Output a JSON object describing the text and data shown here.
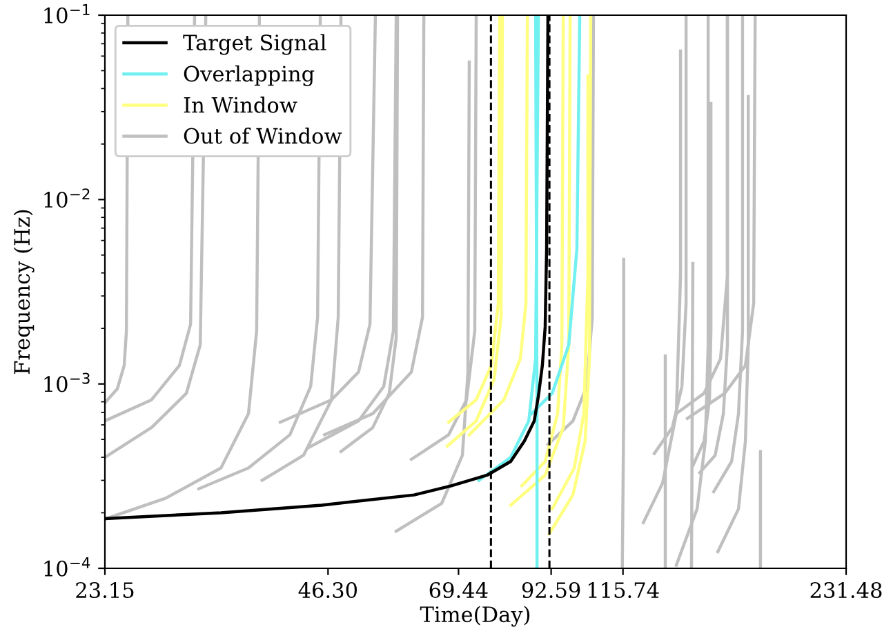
{
  "chart_data": {
    "type": "line",
    "xlabel": "Time(Day)",
    "ylabel": "Frequency (Hz)",
    "log": "xy",
    "legend": "top left",
    "grid": false,
    "marker": "none",
    "line_style": "solid",
    "xlim": [
      23.15,
      231.48
    ],
    "ylim": [
      0.0001,
      0.1
    ],
    "xticks": [
      23.15,
      {
        "value": 46.3,
        "label": "46.30"
      },
      69.44,
      92.59,
      115.74,
      231.48
    ],
    "yticks": [
      {
        "value": 0.0001,
        "label": "10$^{−4}$"
      },
      {
        "value": 0.001,
        "label": "10$^{−3}$"
      },
      {
        "value": 0.01,
        "label": "10$^{−2}$"
      },
      {
        "value": 0.1,
        "label": "10$^{−1}$"
      }
    ],
    "ref_lines": [
      {
        "axis": "x",
        "value": 76.8,
        "color": "#000000",
        "line_style": "dashed"
      },
      {
        "axis": "x",
        "value": 92.1,
        "color": "#000000",
        "line_style": "dashed"
      }
    ],
    "series": [
      {
        "name": "Out of Window",
        "color": "#bfbfbf",
        "x": [
          23.15,
          24.06,
          24.58,
          24.75,
          24.86
        ],
        "values": [
          0.00079,
          0.00094,
          0.00126,
          0.00194,
          0.1
        ]
      },
      {
        "color": "#bfbfbf",
        "x": [
          23.15,
          26.76,
          29.18,
          30.21,
          30.59
        ],
        "values": [
          0.00063,
          0.00082,
          0.00126,
          0.00211,
          0.1
        ]
      },
      {
        "color": "#bfbfbf",
        "x": [
          23.15,
          26.76,
          29.82,
          31.13,
          31.67
        ],
        "values": [
          0.0004,
          0.00058,
          0.00089,
          0.00163,
          0.1
        ]
      },
      {
        "color": "#bfbfbf",
        "x": [
          23.25,
          27.96,
          33.2,
          36.16,
          37.09,
          37.41
        ],
        "values": [
          0.000186,
          0.00024,
          0.00035,
          0.00069,
          0.00194,
          0.1
        ]
      },
      {
        "color": "#bfbfbf",
        "x": [
          30.99,
          36.16,
          41.13,
          43.87,
          44.82,
          45.2
        ],
        "values": [
          0.00027,
          0.00035,
          0.00053,
          0.00097,
          0.0023,
          0.1
        ]
      },
      {
        "color": "#bfbfbf",
        "x": [
          37.73,
          42.9,
          46.8,
          47.79,
          48.2
        ],
        "values": [
          0.0003,
          0.00041,
          0.00082,
          0.0023,
          0.1
        ]
      },
      {
        "color": "#bfbfbf",
        "x": [
          39.91,
          46.8,
          50.9,
          52.74,
          53.64
        ],
        "values": [
          0.00062,
          0.00082,
          0.00116,
          0.00211,
          0.1
        ]
      },
      {
        "color": "#bfbfbf",
        "x": [
          43.49,
          50.9,
          55.05,
          56.72,
          57.22
        ],
        "values": [
          0.00045,
          0.00063,
          0.00097,
          0.00194,
          0.1
        ]
      },
      {
        "color": "#bfbfbf",
        "x": [
          48.2,
          53.2,
          56.0,
          57.22,
          57.46
        ],
        "values": [
          0.00043,
          0.00058,
          0.00089,
          0.00178,
          0.1
        ]
      },
      {
        "color": "#bfbfbf",
        "x": [
          45.8,
          53.2,
          59.98,
          62.09,
          62.35
        ],
        "values": [
          0.00053,
          0.00069,
          0.00116,
          0.0023,
          0.1
        ]
      },
      {
        "color": "#bfbfbf",
        "x": [
          59.98,
          67.34,
          71.19,
          73.04,
          73.36
        ],
        "values": [
          0.00039,
          0.00053,
          0.00082,
          0.00194,
          0.1
        ]
      },
      {
        "color": "#bfbfbf",
        "x": [
          57.22,
          65.9,
          70.28,
          71.5,
          71.8
        ],
        "values": [
          0.000159,
          0.000225,
          0.00041,
          0.00116,
          0.0557
        ]
      },
      {
        "color": "#bfbfbf",
        "x": [
          91.67,
          99.07,
          103.4,
          105.2,
          105.6
        ],
        "values": [
          0.00047,
          0.00063,
          0.00097,
          0.0023,
          0.1
        ]
      },
      {
        "color": "#bfbfbf",
        "x": [
          115.5,
          116.0,
          116.0
        ],
        "values": [
          0.000101,
          0.00069,
          0.00474
        ]
      },
      {
        "color": "#bfbfbf",
        "x": [
          132.0,
          132.0
        ],
        "values": [
          0.000101,
          0.00142
        ]
      },
      {
        "color": "#bfbfbf",
        "x": [
          143.2,
          143.8
        ],
        "values": [
          0.000101,
          0.0045
        ]
      },
      {
        "color": "#bfbfbf",
        "x": [
          177.4,
          177.4
        ],
        "values": [
          0.000101,
          0.00043
        ]
      },
      {
        "color": "#bfbfbf",
        "x": [
          123.3,
          130.9,
          136.6,
          138.4,
          138.4
        ],
        "values": [
          0.000177,
          0.00029,
          0.00069,
          0.00386,
          0.0639
        ]
      },
      {
        "color": "#bfbfbf",
        "x": [
          127.6,
          134.9,
          139.0,
          140.8,
          140.8
        ],
        "values": [
          0.00042,
          0.00058,
          0.00097,
          0.00273,
          0.1
        ]
      },
      {
        "color": "#bfbfbf",
        "x": [
          136.6,
          145.7,
          149.5,
          150.8,
          150.8
        ],
        "values": [
          0.000104,
          0.00021,
          0.00049,
          0.00163,
          0.1
        ]
      },
      {
        "color": "#bfbfbf",
        "x": [
          143.8,
          148.9,
          151.4,
          152.1,
          152.1
        ],
        "values": [
          0.00036,
          0.00049,
          0.00082,
          0.00194,
          0.0332
        ]
      },
      {
        "color": "#bfbfbf",
        "x": [
          146.9,
          154.1,
          158.1,
          160.1,
          160.1
        ],
        "values": [
          0.00033,
          0.00041,
          0.00069,
          0.00163,
          0.1
        ]
      },
      {
        "color": "#bfbfbf",
        "x": [
          153.4,
          162.2,
          165.7,
          167.8,
          167.8
        ],
        "values": [
          0.00026,
          0.00038,
          0.00069,
          0.00194,
          0.1
        ]
      },
      {
        "color": "#bfbfbf",
        "x": [
          155.4,
          165.7,
          169.3,
          170.8,
          170.8
        ],
        "values": [
          0.000123,
          0.00021,
          0.00049,
          0.00163,
          0.0362
        ]
      },
      {
        "color": "#bfbfbf",
        "x": [
          141.4,
          158.8,
          169.3,
          173.7,
          174.5
        ],
        "values": [
          0.00065,
          0.00089,
          0.00126,
          0.00273,
          0.1
        ]
      },
      {
        "color": "#bfbfbf",
        "x": [
          136.6,
          148.9,
          156.7,
          160.1,
          160.1
        ],
        "values": [
          0.00069,
          0.00089,
          0.00137,
          0.00386,
          0.1
        ]
      },
      {
        "name": "In Window",
        "color": "#ffff80",
        "x": [
          67.34,
          73.36,
          76.9,
          78.57,
          78.91
        ],
        "values": [
          0.00062,
          0.00082,
          0.00126,
          0.00273,
          0.1
        ]
      },
      {
        "color": "#ffff80",
        "x": [
          67.04,
          73.36,
          77.56,
          79.25,
          79.59
        ],
        "values": [
          0.00046,
          0.00063,
          0.00106,
          0.0023,
          0.1
        ]
      },
      {
        "color": "#ffff80",
        "x": [
          71.8,
          79.94,
          84.15,
          85.62,
          86.0
        ],
        "values": [
          0.00053,
          0.00082,
          0.00137,
          0.00273,
          0.1
        ]
      },
      {
        "color": "#ffff80",
        "x": [
          84.52,
          90.89,
          94.47,
          95.73,
          96.14
        ],
        "values": [
          0.00028,
          0.00038,
          0.00069,
          0.00163,
          0.1
        ]
      },
      {
        "color": "#ffff80",
        "x": [
          81.67,
          90.89,
          96.14,
          97.8,
          98.22
        ],
        "values": [
          0.00022,
          0.00032,
          0.00058,
          0.00163,
          0.1
        ]
      },
      {
        "color": "#ffff80",
        "x": [
          92.07,
          99.07,
          102.9,
          104.3,
          104.7
        ],
        "values": [
          0.000154,
          0.00025,
          0.00049,
          0.00137,
          0.1
        ]
      },
      {
        "color": "#ffff80",
        "x": [
          92.9,
          99.49,
          102.5,
          103.8,
          103.8
        ],
        "values": [
          0.00021,
          0.00035,
          0.00069,
          0.00386,
          0.0469
        ]
      },
      {
        "name": "Overlapping",
        "color": "#70f0f0",
        "x": [
          88.62,
          88.62,
          88.23
        ],
        "values": [
          0.000101,
          0.00069,
          0.1
        ]
      },
      {
        "color": "#70f0f0",
        "x": [
          73.99,
          81.67,
          86.38,
          88.23,
          89.0
        ],
        "values": [
          0.0003,
          0.0004,
          0.00063,
          0.00137,
          0.1
        ]
      },
      {
        "color": "#70f0f0",
        "x": [
          87.12,
          92.9,
          97.8,
          100.3,
          101.2
        ],
        "values": [
          0.00069,
          0.00089,
          0.00163,
          0.0054,
          0.1
        ]
      },
      {
        "name": "Target Signal",
        "color": "#000000",
        "x": [
          23.15,
          33.2,
          45.4,
          60.5,
          67.9,
          75.9,
          81.67,
          85.2,
          87.86,
          89.0,
          90.1,
          90.89,
          91.3,
          91.67
        ],
        "values": [
          0.000186,
          0.0002,
          0.00022,
          0.00025,
          0.00028,
          0.00032,
          0.00038,
          0.00049,
          0.00063,
          0.00086,
          0.00126,
          0.00204,
          0.0054,
          0.1
        ]
      }
    ]
  }
}
